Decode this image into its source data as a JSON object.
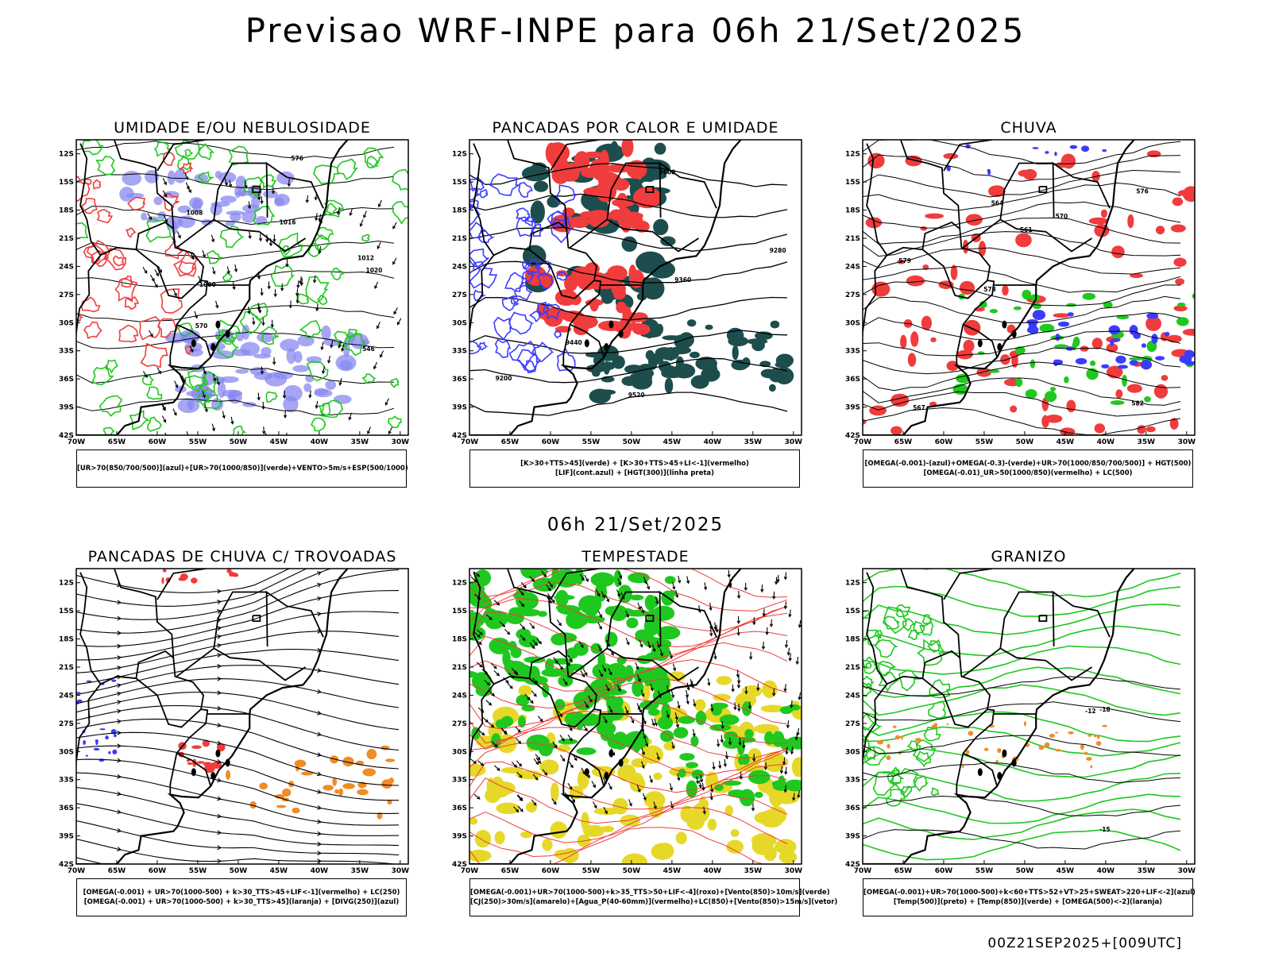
{
  "title": "Previsao WRF-INPE  para 06h 21/Set/2025",
  "subtitle_date": "06h 21/Set/2025",
  "footer": "00Z21SEP2025+[009UTC]",
  "lat_ticks": [
    "12S",
    "15S",
    "18S",
    "21S",
    "24S",
    "27S",
    "30S",
    "33S",
    "36S",
    "39S",
    "42S"
  ],
  "lon_ticks": [
    "70W",
    "65W",
    "60W",
    "55W",
    "50W",
    "45W",
    "40W",
    "35W",
    "30W"
  ],
  "colors": {
    "blue": "#3b3bff",
    "green": "#1fc81f",
    "red": "#f03c3c",
    "orange": "#f08c28",
    "yellow": "#e6d828",
    "teal": "#1e4d4d",
    "purple": "#8888f0"
  },
  "chart_data": [
    {
      "type": "map",
      "title": "UMIDADE E/OU NEBULOSIDADE",
      "legend": [
        "[UR>70(850/700/500)](azul)+[UR>70(1000/850)](verde)+VENTO>5m/s+ESP(500/1000)"
      ],
      "contour_labels": [
        "1008",
        "1012",
        "1016",
        "1020",
        "1000",
        "546",
        "570",
        "576"
      ]
    },
    {
      "type": "map",
      "title": "PANCADAS POR CALOR E UMIDADE",
      "legend": [
        "[K>30+TTS>45](verde) + [K>30+TTS>45+LI<-1](vermelho)",
        "[LIF](cont.azul) + [HGT(300)](linha preta)"
      ],
      "contour_labels": [
        "9600",
        "9520",
        "9440",
        "9360",
        "9280",
        "9200"
      ]
    },
    {
      "type": "map",
      "title": "CHUVA",
      "legend": [
        "[OMEGA(-0.001)-(azul)+OMEGA(-0.3)-(verde)+UR>70(1000/850/700/500)] + HGT(500)",
        "[OMEGA(-0.01)_UR>50(1000/850)(vermelho) + LC(500)"
      ],
      "contour_labels": [
        "582",
        "579",
        "576",
        "573",
        "570",
        "567",
        "564",
        "561"
      ]
    },
    {
      "type": "map",
      "title": "PANCADAS DE CHUVA C/ TROVOADAS",
      "legend": [
        "[OMEGA(-0.001) + UR>70(1000-500) + k>30_TTS>45+LIF<-1](vermelho) + LC(250)",
        "[OMEGA(-0.001) + UR>70(1000-500) + k>30_TTS>45](laranja) + [DIVG(250)](azul)"
      ],
      "contour_labels": []
    },
    {
      "type": "map",
      "title": "TEMPESTADE",
      "legend": [
        "[OMEGA(-0.001)+UR>70(1000-500)+k>35_TTS>50+LIF<-4](roxo)+[Vento(850)>10m/s](verde)",
        "[CJ(250)>30m/s](amarelo)+[Agua_P(40-60mm)](vermelho)+LC(850)+[Vento(850)>15m/s](vetor)"
      ],
      "contour_labels": []
    },
    {
      "type": "map",
      "title": "GRANIZO",
      "legend": [
        "[OMEGA(-0.001)+UR>70(1000-500)+k<60+TTS>52+VT>25+SWEAT>220+LIF<-2](azul)",
        "[Temp(500)](preto) + [Temp(850)](verde) + [OMEGA(500)<-2](laranja)"
      ],
      "contour_labels": [
        "-12",
        "-15",
        "-18"
      ]
    }
  ]
}
